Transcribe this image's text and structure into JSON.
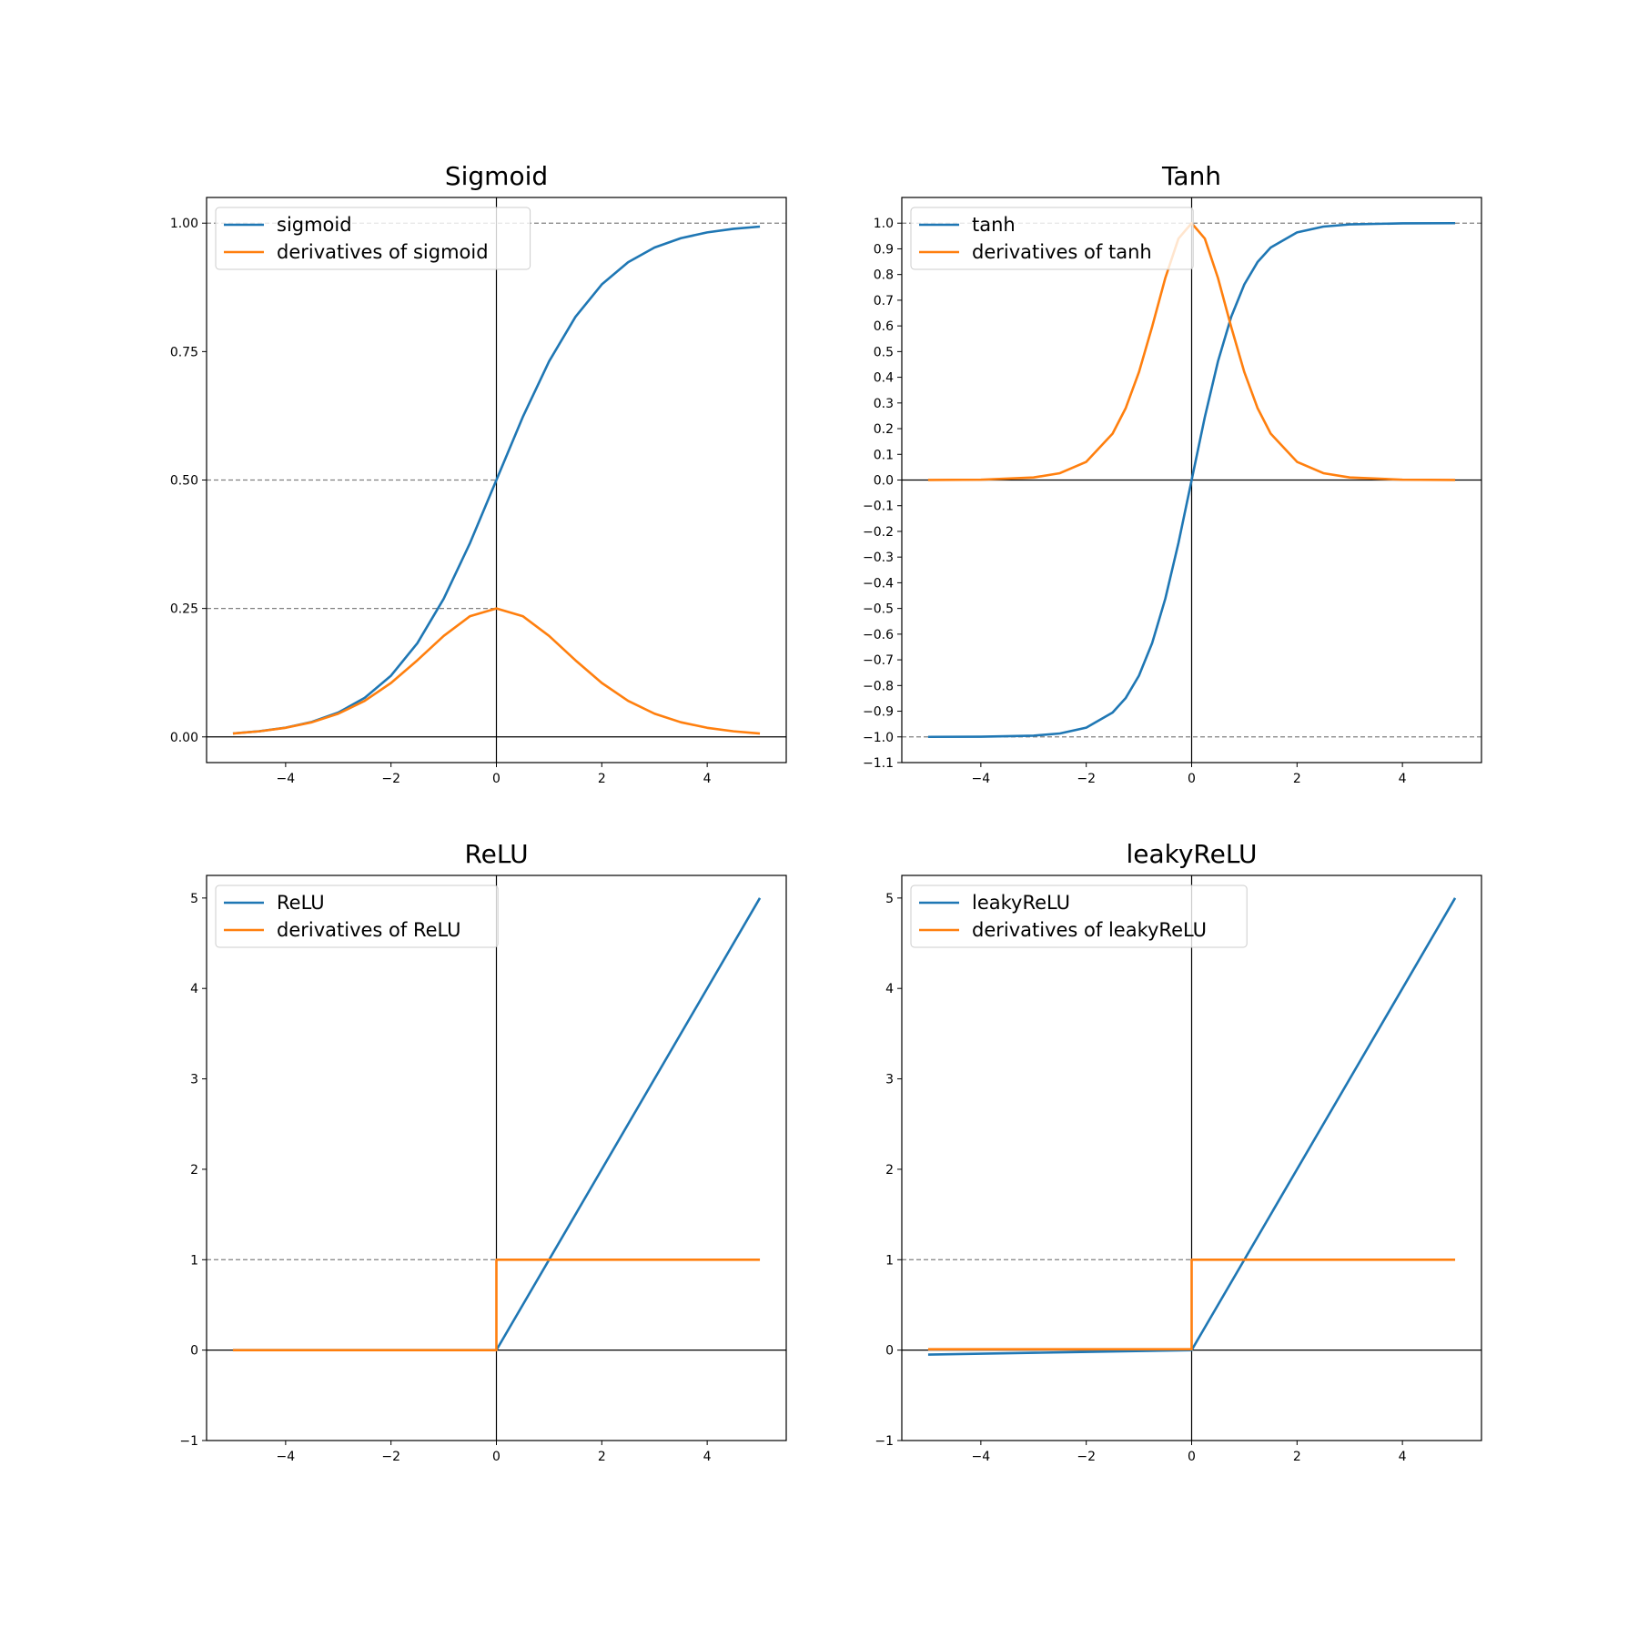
{
  "chart_data": [
    {
      "type": "line",
      "title": "Sigmoid",
      "xlabel": "",
      "ylabel": "",
      "xlim": [
        -5.5,
        5.5
      ],
      "ylim": [
        -0.05,
        1.05
      ],
      "xticks": [
        -4,
        -2,
        0,
        2,
        4
      ],
      "xtick_labels": [
        "−4",
        "−2",
        "0",
        "2",
        "4"
      ],
      "yticks": [
        0,
        0.25,
        0.5,
        0.75,
        1
      ],
      "ytick_labels": [
        "0.00",
        "0.25",
        "0.50",
        "0.75",
        "1.00"
      ],
      "zero_lines": true,
      "ref_lines": [
        {
          "y": 1,
          "x_from": -5.5,
          "x_to": 5.5
        },
        {
          "y": 0.5,
          "x_from": -5.5,
          "x_to": 0
        },
        {
          "y": 0.25,
          "x_from": -5.5,
          "x_to": 0
        }
      ],
      "legend_position": "upper-left",
      "series": [
        {
          "name": "sigmoid",
          "color": "#1f77b4",
          "x": [
            -5,
            -4.5,
            -4,
            -3.5,
            -3,
            -2.5,
            -2,
            -1.5,
            -1,
            -0.5,
            0,
            0.5,
            1,
            1.5,
            2,
            2.5,
            3,
            3.5,
            4,
            4.5,
            5
          ],
          "y": [
            0.0067,
            0.011,
            0.018,
            0.0293,
            0.0474,
            0.0759,
            0.1192,
            0.1824,
            0.2689,
            0.3775,
            0.5,
            0.6225,
            0.7311,
            0.8176,
            0.8808,
            0.9241,
            0.9526,
            0.9707,
            0.982,
            0.989,
            0.9933
          ]
        },
        {
          "name": "derivatives of sigmoid",
          "color": "#ff7f0e",
          "x": [
            -5,
            -4.5,
            -4,
            -3.5,
            -3,
            -2.5,
            -2,
            -1.5,
            -1,
            -0.5,
            0,
            0.5,
            1,
            1.5,
            2,
            2.5,
            3,
            3.5,
            4,
            4.5,
            5
          ],
          "y": [
            0.0066,
            0.0109,
            0.0177,
            0.0285,
            0.0452,
            0.0701,
            0.105,
            0.1491,
            0.1966,
            0.235,
            0.25,
            0.235,
            0.1966,
            0.1491,
            0.105,
            0.0701,
            0.0452,
            0.0285,
            0.0177,
            0.0109,
            0.0066
          ]
        }
      ]
    },
    {
      "type": "line",
      "title": "Tanh",
      "xlabel": "",
      "ylabel": "",
      "xlim": [
        -5.5,
        5.5
      ],
      "ylim": [
        -1.1,
        1.1
      ],
      "xticks": [
        -4,
        -2,
        0,
        2,
        4
      ],
      "xtick_labels": [
        "−4",
        "−2",
        "0",
        "2",
        "4"
      ],
      "yticks": [
        -1.1,
        -1,
        -0.9,
        -0.8,
        -0.7,
        -0.6,
        -0.5,
        -0.4,
        -0.3,
        -0.2,
        -0.1,
        0,
        0.1,
        0.2,
        0.3,
        0.4,
        0.5,
        0.6,
        0.7,
        0.8,
        0.9,
        1
      ],
      "ytick_labels": [
        "−1.1",
        "−1.0",
        "−0.9",
        "−0.8",
        "−0.7",
        "−0.6",
        "−0.5",
        "−0.4",
        "−0.3",
        "−0.2",
        "−0.1",
        "0.0",
        "0.1",
        "0.2",
        "0.3",
        "0.4",
        "0.5",
        "0.6",
        "0.7",
        "0.8",
        "0.9",
        "1.0"
      ],
      "zero_lines": true,
      "ref_lines": [
        {
          "y": 1,
          "x_from": -5.5,
          "x_to": 5.5
        },
        {
          "y": -1,
          "x_from": -5.5,
          "x_to": 5.5
        }
      ],
      "legend_position": "upper-left",
      "series": [
        {
          "name": "tanh",
          "color": "#1f77b4",
          "x": [
            -5,
            -4,
            -3,
            -2.5,
            -2,
            -1.5,
            -1.25,
            -1,
            -0.75,
            -0.5,
            -0.25,
            0,
            0.25,
            0.5,
            0.75,
            1,
            1.25,
            1.5,
            2,
            2.5,
            3,
            4,
            5
          ],
          "y": [
            -0.9999,
            -0.9993,
            -0.9951,
            -0.9866,
            -0.964,
            -0.9051,
            -0.8483,
            -0.7616,
            -0.6351,
            -0.4621,
            -0.2449,
            0,
            0.2449,
            0.4621,
            0.6351,
            0.7616,
            0.8483,
            0.9051,
            0.964,
            0.9866,
            0.9951,
            0.9993,
            0.9999
          ]
        },
        {
          "name": "derivatives of tanh",
          "color": "#ff7f0e",
          "x": [
            -5,
            -4,
            -3,
            -2.5,
            -2,
            -1.5,
            -1.25,
            -1,
            -0.75,
            -0.5,
            -0.25,
            0,
            0.25,
            0.5,
            0.75,
            1,
            1.25,
            1.5,
            2,
            2.5,
            3,
            4,
            5
          ],
          "y": [
            0.0002,
            0.0013,
            0.0099,
            0.0266,
            0.0707,
            0.1807,
            0.2804,
            0.42,
            0.5966,
            0.7864,
            0.94,
            1,
            0.94,
            0.7864,
            0.5966,
            0.42,
            0.2804,
            0.1807,
            0.0707,
            0.0266,
            0.0099,
            0.0013,
            0.0002
          ]
        }
      ]
    },
    {
      "type": "line",
      "title": "ReLU",
      "xlabel": "",
      "ylabel": "",
      "xlim": [
        -5.5,
        5.5
      ],
      "ylim": [
        -1,
        5.25
      ],
      "xticks": [
        -4,
        -2,
        0,
        2,
        4
      ],
      "xtick_labels": [
        "−4",
        "−2",
        "0",
        "2",
        "4"
      ],
      "yticks": [
        -1,
        0,
        1,
        2,
        3,
        4,
        5
      ],
      "ytick_labels": [
        "−1",
        "0",
        "1",
        "2",
        "3",
        "4",
        "5"
      ],
      "zero_lines": true,
      "ref_lines": [
        {
          "y": 1,
          "x_from": -5.5,
          "x_to": 0
        }
      ],
      "legend_position": "upper-left",
      "series": [
        {
          "name": "ReLU",
          "color": "#1f77b4",
          "x": [
            -5,
            0,
            5
          ],
          "y": [
            0,
            0,
            5
          ]
        },
        {
          "name": "derivatives of ReLU",
          "color": "#ff7f0e",
          "x": [
            -5,
            0,
            0,
            5
          ],
          "y": [
            0,
            0,
            1,
            1
          ]
        }
      ]
    },
    {
      "type": "line",
      "title": "leakyReLU",
      "xlabel": "",
      "ylabel": "",
      "xlim": [
        -5.5,
        5.5
      ],
      "ylim": [
        -1,
        5.25
      ],
      "xticks": [
        -4,
        -2,
        0,
        2,
        4
      ],
      "xtick_labels": [
        "−4",
        "−2",
        "0",
        "2",
        "4"
      ],
      "yticks": [
        -1,
        0,
        1,
        2,
        3,
        4,
        5
      ],
      "ytick_labels": [
        "−1",
        "0",
        "1",
        "2",
        "3",
        "4",
        "5"
      ],
      "zero_lines": true,
      "ref_lines": [
        {
          "y": 1,
          "x_from": -5.5,
          "x_to": 0
        }
      ],
      "legend_position": "upper-left",
      "series": [
        {
          "name": "leakyReLU",
          "color": "#1f77b4",
          "x": [
            -5,
            0,
            5
          ],
          "y": [
            -0.05,
            0,
            5
          ]
        },
        {
          "name": "derivatives of leakyReLU",
          "color": "#ff7f0e",
          "x": [
            -5,
            0,
            0,
            5
          ],
          "y": [
            0.01,
            0.01,
            1,
            1
          ]
        }
      ]
    }
  ]
}
